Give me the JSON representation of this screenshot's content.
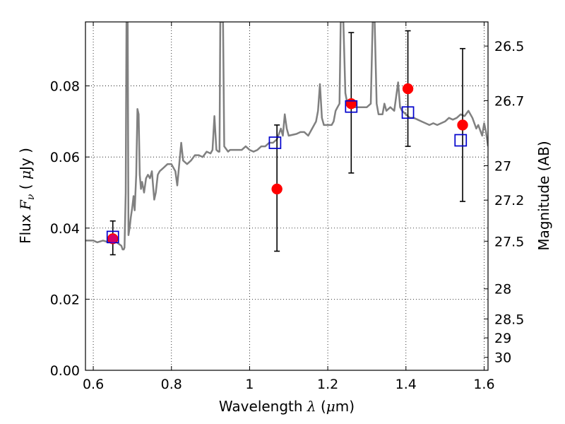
{
  "chart_data": {
    "type": "scatter",
    "title": "",
    "xlabel": "Wavelength  λ (μm)",
    "ylabel": "Flux  F_ν  ( μJy )",
    "ylabel_right": "Magnitude (AB)",
    "xlim": [
      0.58,
      1.61
    ],
    "ylim": [
      0.0,
      0.098
    ],
    "grid": true,
    "x_ticks": [
      0.6,
      0.8,
      1.0,
      1.2,
      1.4,
      1.6
    ],
    "x_tick_labels": [
      "0.6",
      "0.8",
      "1",
      "1.2",
      "1.4",
      "1.6"
    ],
    "y_ticks": [
      0.0,
      0.02,
      0.04,
      0.06,
      0.08
    ],
    "y_tick_labels": [
      "0.00",
      "0.02",
      "0.04",
      "0.06",
      "0.08"
    ],
    "right_ticks": [
      {
        "mag": 26.5,
        "label": "26.5"
      },
      {
        "mag": 26.7,
        "label": "26.7"
      },
      {
        "mag": 27.0,
        "label": "27"
      },
      {
        "mag": 27.2,
        "label": "27.2"
      },
      {
        "mag": 27.5,
        "label": "27.5"
      },
      {
        "mag": 28.0,
        "label": "28"
      },
      {
        "mag": 28.5,
        "label": "28.5"
      },
      {
        "mag": 29.0,
        "label": "29"
      },
      {
        "mag": 30.0,
        "label": "30"
      }
    ],
    "series": [
      {
        "kind": "line",
        "color": "#808080",
        "points": [
          [
            0.58,
            0.0365
          ],
          [
            0.6,
            0.0365
          ],
          [
            0.61,
            0.036
          ],
          [
            0.625,
            0.0365
          ],
          [
            0.64,
            0.036
          ],
          [
            0.66,
            0.036
          ],
          [
            0.672,
            0.035
          ],
          [
            0.675,
            0.034
          ],
          [
            0.678,
            0.034
          ],
          [
            0.68,
            0.0345
          ],
          [
            0.683,
            0.05
          ],
          [
            0.685,
            0.098
          ],
          [
            0.688,
            0.098
          ],
          [
            0.69,
            0.038
          ],
          [
            0.693,
            0.04
          ],
          [
            0.696,
            0.043
          ],
          [
            0.7,
            0.046
          ],
          [
            0.703,
            0.049
          ],
          [
            0.706,
            0.045
          ],
          [
            0.71,
            0.055
          ],
          [
            0.713,
            0.0735
          ],
          [
            0.716,
            0.072
          ],
          [
            0.719,
            0.055
          ],
          [
            0.722,
            0.051
          ],
          [
            0.725,
            0.053
          ],
          [
            0.73,
            0.05
          ],
          [
            0.735,
            0.054
          ],
          [
            0.74,
            0.055
          ],
          [
            0.745,
            0.054
          ],
          [
            0.75,
            0.056
          ],
          [
            0.753,
            0.052
          ],
          [
            0.756,
            0.048
          ],
          [
            0.76,
            0.05
          ],
          [
            0.765,
            0.055
          ],
          [
            0.77,
            0.056
          ],
          [
            0.78,
            0.057
          ],
          [
            0.79,
            0.058
          ],
          [
            0.8,
            0.058
          ],
          [
            0.81,
            0.056
          ],
          [
            0.815,
            0.052
          ],
          [
            0.82,
            0.058
          ],
          [
            0.825,
            0.064
          ],
          [
            0.83,
            0.059
          ],
          [
            0.84,
            0.058
          ],
          [
            0.85,
            0.059
          ],
          [
            0.86,
            0.0605
          ],
          [
            0.87,
            0.0605
          ],
          [
            0.88,
            0.06
          ],
          [
            0.89,
            0.0615
          ],
          [
            0.9,
            0.061
          ],
          [
            0.905,
            0.062
          ],
          [
            0.91,
            0.0715
          ],
          [
            0.915,
            0.062
          ],
          [
            0.92,
            0.0615
          ],
          [
            0.923,
            0.0615
          ],
          [
            0.925,
            0.098
          ],
          [
            0.932,
            0.098
          ],
          [
            0.935,
            0.063
          ],
          [
            0.945,
            0.0615
          ],
          [
            0.95,
            0.062
          ],
          [
            0.96,
            0.062
          ],
          [
            0.97,
            0.062
          ],
          [
            0.98,
            0.062
          ],
          [
            0.99,
            0.063
          ],
          [
            1.0,
            0.062
          ],
          [
            1.01,
            0.0615
          ],
          [
            1.02,
            0.062
          ],
          [
            1.03,
            0.063
          ],
          [
            1.04,
            0.063
          ],
          [
            1.05,
            0.064
          ],
          [
            1.06,
            0.064
          ],
          [
            1.07,
            0.065
          ],
          [
            1.08,
            0.068
          ],
          [
            1.085,
            0.066
          ],
          [
            1.09,
            0.072
          ],
          [
            1.095,
            0.068
          ],
          [
            1.1,
            0.066
          ],
          [
            1.12,
            0.0665
          ],
          [
            1.13,
            0.067
          ],
          [
            1.14,
            0.067
          ],
          [
            1.15,
            0.066
          ],
          [
            1.16,
            0.068
          ],
          [
            1.17,
            0.07
          ],
          [
            1.175,
            0.073
          ],
          [
            1.18,
            0.0805
          ],
          [
            1.185,
            0.071
          ],
          [
            1.19,
            0.069
          ],
          [
            1.2,
            0.069
          ],
          [
            1.21,
            0.069
          ],
          [
            1.215,
            0.07
          ],
          [
            1.22,
            0.073
          ],
          [
            1.225,
            0.074
          ],
          [
            1.23,
            0.075
          ],
          [
            1.233,
            0.098
          ],
          [
            1.24,
            0.098
          ],
          [
            1.245,
            0.078
          ],
          [
            1.25,
            0.075
          ],
          [
            1.26,
            0.074
          ],
          [
            1.27,
            0.074
          ],
          [
            1.28,
            0.074
          ],
          [
            1.29,
            0.074
          ],
          [
            1.3,
            0.074
          ],
          [
            1.31,
            0.075
          ],
          [
            1.315,
            0.098
          ],
          [
            1.32,
            0.098
          ],
          [
            1.325,
            0.075
          ],
          [
            1.33,
            0.072
          ],
          [
            1.34,
            0.072
          ],
          [
            1.345,
            0.075
          ],
          [
            1.35,
            0.073
          ],
          [
            1.36,
            0.074
          ],
          [
            1.37,
            0.073
          ],
          [
            1.38,
            0.081
          ],
          [
            1.385,
            0.074
          ],
          [
            1.39,
            0.073
          ],
          [
            1.4,
            0.072
          ],
          [
            1.41,
            0.071
          ],
          [
            1.42,
            0.071
          ],
          [
            1.43,
            0.0705
          ],
          [
            1.44,
            0.07
          ],
          [
            1.45,
            0.0695
          ],
          [
            1.46,
            0.069
          ],
          [
            1.47,
            0.0695
          ],
          [
            1.48,
            0.069
          ],
          [
            1.49,
            0.0695
          ],
          [
            1.5,
            0.07
          ],
          [
            1.51,
            0.071
          ],
          [
            1.52,
            0.0705
          ],
          [
            1.53,
            0.071
          ],
          [
            1.54,
            0.072
          ],
          [
            1.55,
            0.0715
          ],
          [
            1.56,
            0.073
          ],
          [
            1.57,
            0.071
          ],
          [
            1.58,
            0.068
          ],
          [
            1.585,
            0.069
          ],
          [
            1.59,
            0.0675
          ],
          [
            1.595,
            0.066
          ],
          [
            1.6,
            0.0695
          ],
          [
            1.605,
            0.067
          ],
          [
            1.61,
            0.063
          ]
        ]
      },
      {
        "kind": "errorbar",
        "color": "#000000",
        "bars": [
          {
            "x": 0.65,
            "y_low": 0.0325,
            "y_high": 0.042
          },
          {
            "x": 1.07,
            "y_low": 0.0335,
            "y_high": 0.069
          },
          {
            "x": 1.26,
            "y_low": 0.0555,
            "y_high": 0.095
          },
          {
            "x": 1.405,
            "y_low": 0.063,
            "y_high": 0.0955
          },
          {
            "x": 1.545,
            "y_low": 0.0475,
            "y_high": 0.0905
          }
        ]
      },
      {
        "kind": "points",
        "marker": "circle",
        "color": "#ff0000",
        "points": [
          [
            0.65,
            0.037
          ],
          [
            1.07,
            0.051
          ],
          [
            1.26,
            0.075
          ],
          [
            1.405,
            0.0792
          ],
          [
            1.545,
            0.069
          ]
        ]
      },
      {
        "kind": "points",
        "marker": "square",
        "color": "#0000cc",
        "points": [
          [
            0.65,
            0.0375
          ],
          [
            1.065,
            0.064
          ],
          [
            1.26,
            0.0742
          ],
          [
            1.405,
            0.0725
          ],
          [
            1.54,
            0.0647
          ]
        ]
      }
    ]
  }
}
